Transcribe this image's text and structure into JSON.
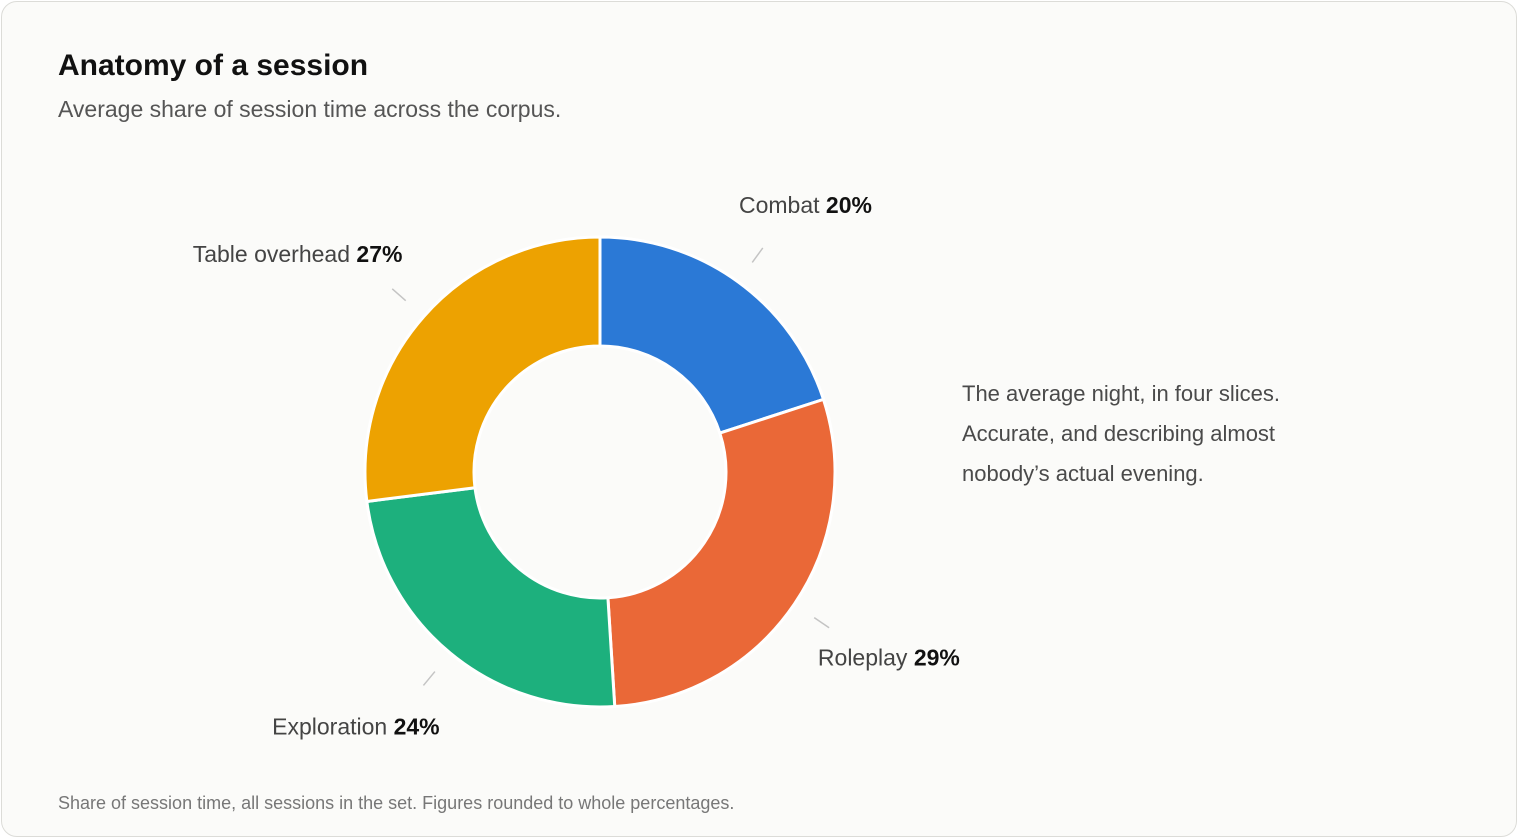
{
  "title": "Anatomy of a session",
  "subtitle": "Average share of session time across the corpus.",
  "note_lines": [
    "The average night, in four slices.",
    "Accurate, and describing almost",
    "nobody’s actual evening."
  ],
  "footnote": "Share of session time, all sessions in the set. Figures rounded to whole percentages.",
  "chart_data": {
    "type": "pie",
    "variant": "donut",
    "legend": "none",
    "slices": [
      {
        "label": "Combat",
        "value": 20,
        "value_label": "20%",
        "color": "#2B79D6"
      },
      {
        "label": "Roleplay",
        "value": 29,
        "value_label": "29%",
        "color": "#EA6837"
      },
      {
        "label": "Exploration",
        "value": 24,
        "value_label": "24%",
        "color": "#1DB07D"
      },
      {
        "label": "Table overhead",
        "value": 27,
        "value_label": "27%",
        "color": "#EDA201"
      }
    ]
  }
}
